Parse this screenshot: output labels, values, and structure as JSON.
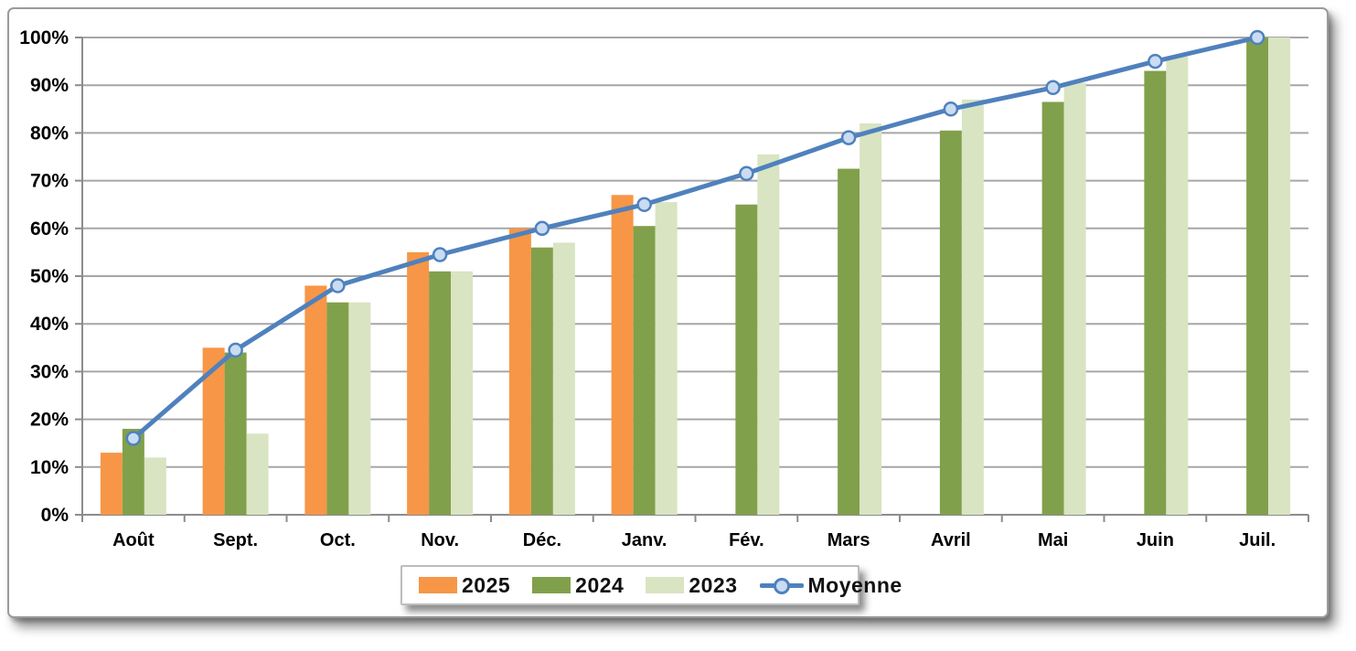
{
  "chart_data": {
    "type": "bar",
    "subtype": "grouped-bars-with-line-overlay",
    "categories": [
      "Août",
      "Sept.",
      "Oct.",
      "Nov.",
      "Déc.",
      "Janv.",
      "Fév.",
      "Mars",
      "Avril",
      "Mai",
      "Juin",
      "Juil."
    ],
    "series": [
      {
        "name": "2025",
        "type": "bar",
        "color": "#F79646",
        "values": [
          13,
          35,
          48,
          55,
          60,
          67,
          null,
          null,
          null,
          null,
          null,
          null
        ]
      },
      {
        "name": "2024",
        "type": "bar",
        "color": "#81A04B",
        "values": [
          18,
          34,
          44.5,
          51,
          56,
          60.5,
          65,
          72.5,
          80.5,
          86.5,
          93,
          100
        ]
      },
      {
        "name": "2023",
        "type": "bar",
        "color": "#D9E4C2",
        "values": [
          12,
          17,
          44.5,
          51,
          57,
          65.5,
          75.5,
          82,
          87,
          90.5,
          96,
          100
        ]
      },
      {
        "name": "Moyenne",
        "type": "line",
        "color": "#4F81BD",
        "marker_fill": "#CADCF2",
        "values": [
          16,
          34.5,
          48,
          54.5,
          60,
          65,
          71.5,
          79,
          85,
          89.5,
          95,
          100
        ]
      }
    ],
    "title": "",
    "xlabel": "",
    "ylabel": "",
    "ylim": [
      0,
      100
    ],
    "ytick_step": 10,
    "ytick_format": "percent",
    "ytick_labels": [
      "0%",
      "10%",
      "20%",
      "30%",
      "40%",
      "50%",
      "60%",
      "70%",
      "80%",
      "90%",
      "100%"
    ],
    "grid": true,
    "legend_position": "bottom",
    "legend_entries": [
      "2025",
      "2024",
      "2023",
      "Moyenne"
    ],
    "colors": {
      "grid": "#A6A6A6",
      "axis": "#8C8C8C",
      "tick_text": "#000000",
      "panel_border": "#9B9B9B",
      "legend_border": "#BDBDBD",
      "background": "#FFFFFF"
    }
  }
}
